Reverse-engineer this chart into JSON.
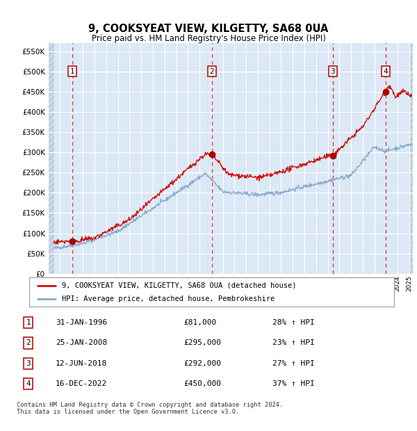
{
  "title": "9, COOKSYEAT VIEW, KILGETTY, SA68 0UA",
  "subtitle": "Price paid vs. HM Land Registry's House Price Index (HPI)",
  "ylim": [
    0,
    570000
  ],
  "yticks": [
    0,
    50000,
    100000,
    150000,
    200000,
    250000,
    300000,
    350000,
    400000,
    450000,
    500000,
    550000
  ],
  "xlim_start": 1994.0,
  "xlim_end": 2025.3,
  "bg_color": "#dbe8f5",
  "line_color_red": "#cc1111",
  "line_color_blue": "#88aacc",
  "marker_color": "#aa0000",
  "sale_dates": [
    1996.08,
    2008.07,
    2018.44,
    2022.96
  ],
  "sale_prices": [
    81000,
    295000,
    292000,
    450000
  ],
  "vline_color": "#cc2222",
  "legend_label_red": "9, COOKSYEAT VIEW, KILGETTY, SA68 0UA (detached house)",
  "legend_label_blue": "HPI: Average price, detached house, Pembrokeshire",
  "table_data": [
    [
      "1",
      "31-JAN-1996",
      "£81,000",
      "28% ↑ HPI"
    ],
    [
      "2",
      "25-JAN-2008",
      "£295,000",
      "23% ↑ HPI"
    ],
    [
      "3",
      "12-JUN-2018",
      "£292,000",
      "27% ↑ HPI"
    ],
    [
      "4",
      "16-DEC-2022",
      "£450,000",
      "37% ↑ HPI"
    ]
  ],
  "footnote": "Contains HM Land Registry data © Crown copyright and database right 2024.\nThis data is licensed under the Open Government Licence v3.0."
}
